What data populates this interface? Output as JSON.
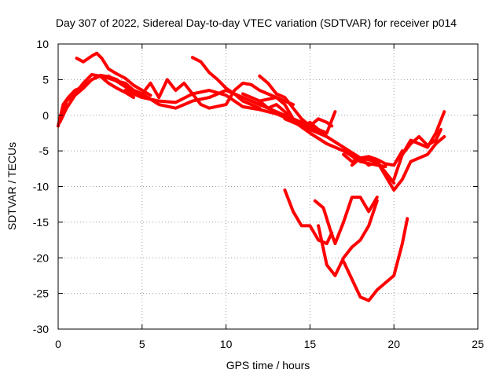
{
  "chart_data": {
    "type": "line",
    "title": "Day 307 of 2022, Sidereal Day-to-day VTEC variation (SDTVAR) for receiver p014",
    "xlabel": "GPS time / hours",
    "ylabel": "SDTVAR / TECUs",
    "xlim": [
      0,
      25
    ],
    "ylim": [
      -30,
      10
    ],
    "xticks": [
      0,
      5,
      10,
      15,
      20,
      25
    ],
    "yticks": [
      -30,
      -25,
      -20,
      -15,
      -10,
      -5,
      0,
      5,
      10
    ],
    "grid": true,
    "legend": "none",
    "color": "#ff0000",
    "series": [
      {
        "x": [
          0,
          0.3,
          0.6,
          1.0,
          1.5,
          2.0,
          2.5,
          3.0,
          3.5,
          4.0,
          4.5
        ],
        "y": [
          -1.5,
          1.5,
          2.5,
          3.5,
          4.0,
          5.0,
          5.5,
          5.2,
          4.8,
          4.5,
          3.5
        ]
      },
      {
        "x": [
          0.1,
          0.5,
          1.0,
          1.5,
          2.0,
          2.5,
          3.0,
          3.5,
          4.0,
          4.5,
          5.0
        ],
        "y": [
          -1.0,
          1.0,
          2.8,
          3.8,
          5.0,
          5.6,
          5.4,
          5.0,
          4.0,
          3.2,
          2.8
        ]
      },
      {
        "x": [
          0.2,
          0.5,
          1.0,
          1.5,
          2.0,
          2.5,
          3.0,
          3.5,
          4.0,
          4.5
        ],
        "y": [
          -0.5,
          2.0,
          3.0,
          4.5,
          5.7,
          5.5,
          4.5,
          3.8,
          3.2,
          2.5
        ]
      },
      {
        "x": [
          1.1,
          1.5,
          2.0,
          2.3,
          2.6,
          3.0,
          3.5,
          4.0,
          4.5,
          5.0,
          5.5
        ],
        "y": [
          8.0,
          7.5,
          8.3,
          8.7,
          8.0,
          6.5,
          5.8,
          5.2,
          4.2,
          3.5,
          2.8
        ]
      },
      {
        "x": [
          3.0,
          4.0,
          5.0,
          6.0,
          7.0,
          8.0,
          9.0,
          10.0,
          11.0,
          12.0,
          13.0,
          14.0,
          15.0,
          16.0,
          17.0,
          18.0,
          19.0,
          20.0
        ],
        "y": [
          5.5,
          4.0,
          3.0,
          1.5,
          1.0,
          2.0,
          2.5,
          3.5,
          2.5,
          1.5,
          0.5,
          -0.5,
          -1.5,
          -3.0,
          -4.5,
          -6.0,
          -6.5,
          -9.5
        ]
      },
      {
        "x": [
          4.0,
          5.0,
          6.0,
          7.0,
          8.0,
          9.0,
          10.0,
          11.0,
          12.0,
          13.0,
          14.0,
          15.0,
          16.0,
          17.0,
          18.0,
          19.0,
          19.5
        ],
        "y": [
          3.5,
          2.5,
          2.0,
          1.8,
          3.0,
          3.5,
          2.8,
          1.2,
          0.8,
          0.2,
          -0.8,
          -2.5,
          -4.0,
          -5.0,
          -6.5,
          -7.0,
          -7.2
        ]
      },
      {
        "x": [
          5.0,
          5.5,
          6.0,
          6.5,
          7.0,
          7.5,
          8.0,
          8.5,
          9.0,
          10.0,
          10.5,
          11.0,
          11.5,
          12.0,
          13.0,
          13.5,
          14.0
        ],
        "y": [
          3.0,
          4.5,
          2.5,
          5.0,
          3.5,
          4.5,
          3.0,
          1.5,
          1.0,
          1.5,
          3.5,
          4.5,
          4.3,
          3.5,
          2.5,
          2.0,
          1.5
        ]
      },
      {
        "x": [
          8.0,
          8.5,
          9.0,
          9.5,
          10.0,
          10.5,
          11.0,
          11.5,
          12.0
        ],
        "y": [
          8.1,
          7.5,
          6.0,
          5.0,
          3.8,
          3.0,
          2.0,
          1.5,
          1.0
        ]
      },
      {
        "x": [
          12.0,
          13.0,
          13.5,
          14.0,
          14.5,
          15.0,
          15.5,
          16.0
        ],
        "y": [
          2.0,
          2.5,
          1.5,
          -0.5,
          -1.0,
          -2.0,
          -2.5,
          -3.0
        ]
      },
      {
        "x": [
          11.0,
          12.0,
          12.5,
          13.0,
          13.5,
          14.0,
          14.5,
          15.0,
          15.5
        ],
        "y": [
          3.0,
          2.0,
          1.0,
          1.5,
          0.5,
          -0.5,
          -1.5,
          -2.0,
          -2.5
        ]
      },
      {
        "x": [
          12.0,
          12.5,
          13.0,
          13.5,
          14.0,
          14.5,
          15.0,
          15.5,
          16.0,
          16.3
        ],
        "y": [
          5.5,
          4.5,
          3.0,
          2.5,
          1.0,
          -0.5,
          -1.5,
          -0.5,
          -1.0,
          -1.5
        ]
      },
      {
        "x": [
          13.5,
          14.0,
          14.5,
          15.0,
          15.5,
          16.0,
          16.5
        ],
        "y": [
          -0.5,
          -1.0,
          -1.5,
          -1.0,
          -2.0,
          -2.5,
          0.5
        ]
      },
      {
        "x": [
          17.0,
          17.5,
          18.0,
          18.5,
          19.0,
          19.5,
          20.0,
          20.5,
          21.0,
          21.5,
          22.0,
          22.5,
          23.0
        ],
        "y": [
          -5.5,
          -6.5,
          -6.0,
          -7.0,
          -6.5,
          -8.5,
          -10.5,
          -9.0,
          -6.5,
          -6.0,
          -5.5,
          -4.0,
          -3.0
        ]
      },
      {
        "x": [
          17.5,
          18.0,
          18.5,
          19.0,
          19.5,
          20.0,
          20.5
        ],
        "y": [
          -7.0,
          -6.0,
          -5.8,
          -6.2,
          -6.8,
          -7.0,
          -5.0
        ]
      },
      {
        "x": [
          20.0,
          20.5,
          21.0,
          21.5,
          22.0,
          22.5,
          23.0
        ],
        "y": [
          -9.0,
          -5.5,
          -3.5,
          -4.0,
          -4.5,
          -2.5,
          0.5
        ]
      },
      {
        "x": [
          20.5,
          21.0,
          21.5,
          22.0,
          22.5,
          22.8
        ],
        "y": [
          -5.5,
          -4.0,
          -3.0,
          -4.2,
          -3.5,
          -2.0
        ]
      },
      {
        "x": [
          13.5,
          14.0,
          14.5,
          15.0,
          15.5,
          16.0,
          16.3
        ],
        "y": [
          -10.5,
          -13.5,
          -15.5,
          -15.5,
          -17.5,
          -18.0,
          -16.5
        ]
      },
      {
        "x": [
          15.3,
          15.8,
          16.2,
          16.5,
          17.0,
          17.5,
          18.0,
          18.5,
          19.0
        ],
        "y": [
          -12.0,
          -13.0,
          -16.0,
          -18.0,
          -15.0,
          -11.5,
          -11.5,
          -13.5,
          -11.5
        ]
      },
      {
        "x": [
          15.5,
          16.0,
          16.5,
          17.0,
          17.5,
          18.0,
          18.5,
          19.0
        ],
        "y": [
          -15.5,
          -21.0,
          -22.5,
          -20.0,
          -18.5,
          -17.5,
          -15.5,
          -12.0
        ]
      },
      {
        "x": [
          17.0,
          17.5,
          18.0,
          18.5,
          19.0,
          19.5,
          20.0,
          20.5,
          20.8
        ],
        "y": [
          -20.5,
          -23.0,
          -25.5,
          -26.0,
          -24.5,
          -23.5,
          -22.5,
          -18.0,
          -14.5
        ]
      }
    ]
  }
}
